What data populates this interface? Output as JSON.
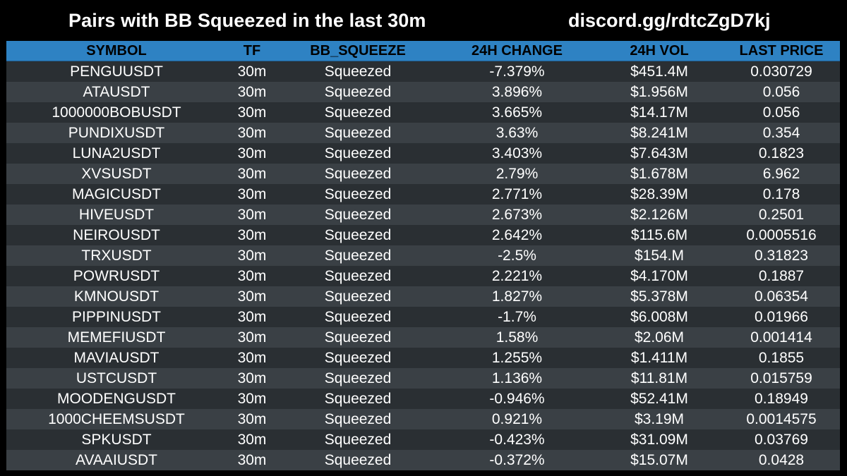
{
  "header": {
    "title": "Pairs with BB Squeezed in the last 30m",
    "link": "discord.gg/rdtcZgD7kj"
  },
  "colors": {
    "header_bg": "#2e82c3",
    "row_dark": "#2a2f33",
    "row_light": "#3a4045",
    "background": "#000000"
  },
  "table": {
    "columns": [
      "SYMBOL",
      "TF",
      "BB_SQUEEZE",
      "24H CHANGE",
      "24H VOL",
      "LAST PRICE"
    ],
    "rows": [
      [
        "PENGUUSDT",
        "30m",
        "Squeezed",
        "-7.379%",
        "$451.4M",
        "0.030729"
      ],
      [
        "ATAUSDT",
        "30m",
        "Squeezed",
        "3.896%",
        "$1.956M",
        "0.056"
      ],
      [
        "1000000BOBUSDT",
        "30m",
        "Squeezed",
        "3.665%",
        "$14.17M",
        "0.056"
      ],
      [
        "PUNDIXUSDT",
        "30m",
        "Squeezed",
        "3.63%",
        "$8.241M",
        "0.354"
      ],
      [
        "LUNA2USDT",
        "30m",
        "Squeezed",
        "3.403%",
        "$7.643M",
        "0.1823"
      ],
      [
        "XVSUSDT",
        "30m",
        "Squeezed",
        "2.79%",
        "$1.678M",
        "6.962"
      ],
      [
        "MAGICUSDT",
        "30m",
        "Squeezed",
        "2.771%",
        "$28.39M",
        "0.178"
      ],
      [
        "HIVEUSDT",
        "30m",
        "Squeezed",
        "2.673%",
        "$2.126M",
        "0.2501"
      ],
      [
        "NEIROUSDT",
        "30m",
        "Squeezed",
        "2.642%",
        "$115.6M",
        "0.0005516"
      ],
      [
        "TRXUSDT",
        "30m",
        "Squeezed",
        "-2.5%",
        "$154.M",
        "0.31823"
      ],
      [
        "POWRUSDT",
        "30m",
        "Squeezed",
        "2.221%",
        "$4.170M",
        "0.1887"
      ],
      [
        "KMNOUSDT",
        "30m",
        "Squeezed",
        "1.827%",
        "$5.378M",
        "0.06354"
      ],
      [
        "PIPPINUSDT",
        "30m",
        "Squeezed",
        "-1.7%",
        "$6.008M",
        "0.01966"
      ],
      [
        "MEMEFIUSDT",
        "30m",
        "Squeezed",
        "1.58%",
        "$2.06M",
        "0.001414"
      ],
      [
        "MAVIAUSDT",
        "30m",
        "Squeezed",
        "1.255%",
        "$1.411M",
        "0.1855"
      ],
      [
        "USTCUSDT",
        "30m",
        "Squeezed",
        "1.136%",
        "$11.81M",
        "0.015759"
      ],
      [
        "MOODENGUSDT",
        "30m",
        "Squeezed",
        "-0.946%",
        "$52.41M",
        "0.18949"
      ],
      [
        "1000CHEEMSUSDT",
        "30m",
        "Squeezed",
        "0.921%",
        "$3.19M",
        "0.0014575"
      ],
      [
        "SPKUSDT",
        "30m",
        "Squeezed",
        "-0.423%",
        "$31.09M",
        "0.03769"
      ],
      [
        "AVAAIUSDT",
        "30m",
        "Squeezed",
        "-0.372%",
        "$15.07M",
        "0.0428"
      ]
    ]
  }
}
